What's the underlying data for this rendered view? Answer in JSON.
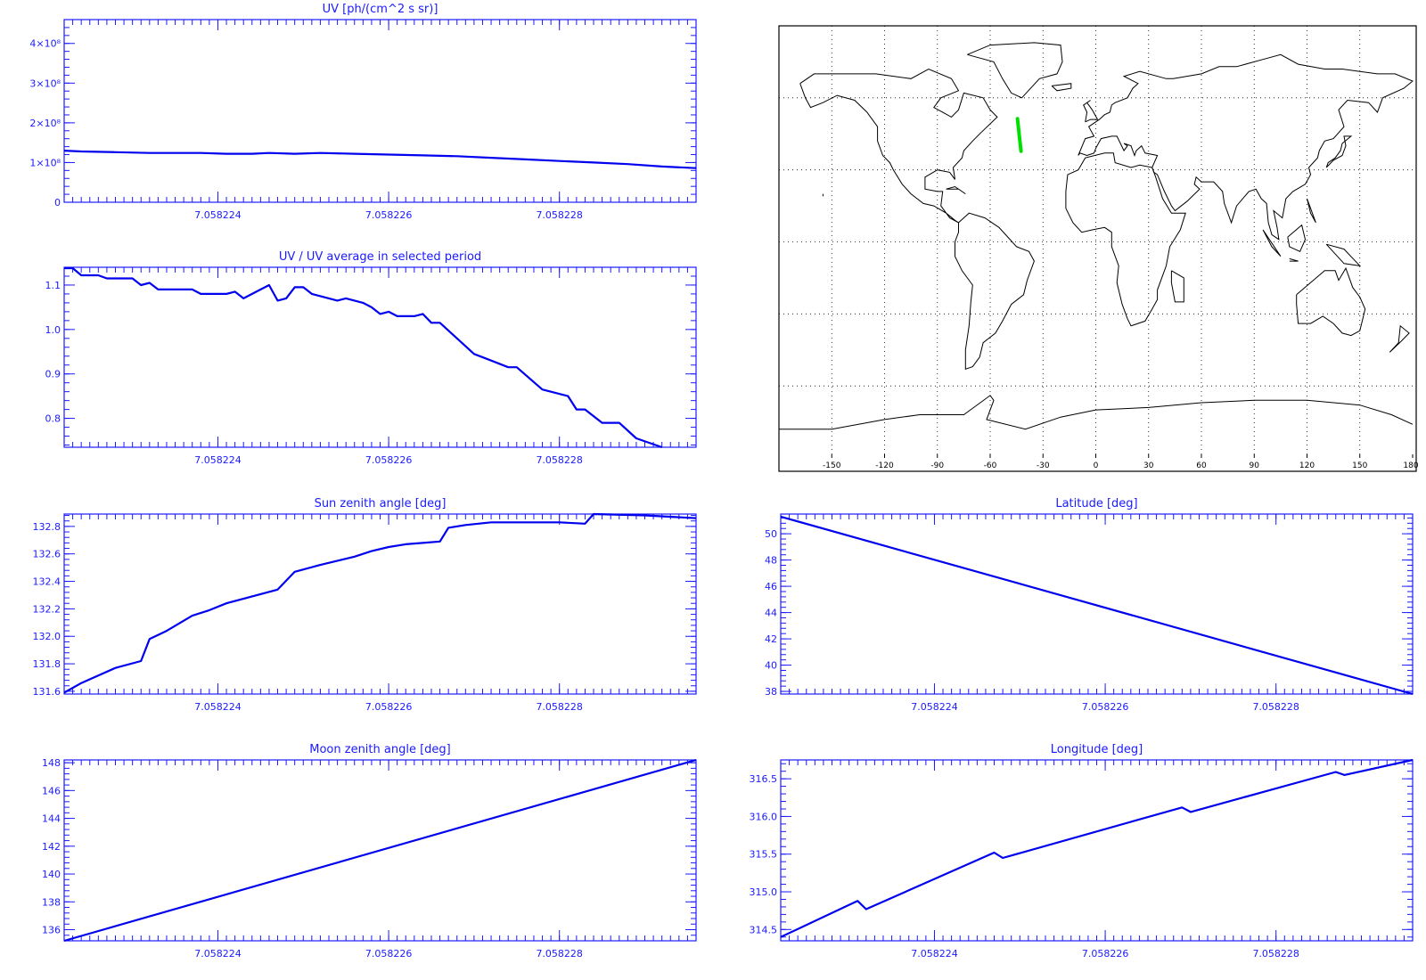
{
  "colors": {
    "axis": "#1a1aff",
    "line": "#0000ee",
    "track": "#00e000",
    "map": "#000000"
  },
  "chart_data": [
    {
      "type": "line",
      "title": "UV [ph/(cm^2 s sr)]",
      "xlabel": "",
      "ylabel": "",
      "xlim": [
        7.0582222,
        7.0582296
      ],
      "ylim": [
        0,
        4.6
      ],
      "x_ticks": [
        7.058224,
        7.058226,
        7.058228
      ],
      "x_tick_labels": [
        "7.058224",
        "7.058226",
        "7.058228"
      ],
      "y_ticks": [
        0,
        1,
        2,
        3,
        4
      ],
      "y_tick_labels": [
        "0",
        "1×10⁸",
        "2×10⁸",
        "3×10⁸",
        "4×10⁸"
      ],
      "series": [
        {
          "values": [
            [
              7.0582222,
              1.3
            ],
            [
              7.0582224,
              1.28
            ],
            [
              7.0582228,
              1.26
            ],
            [
              7.0582232,
              1.24
            ],
            [
              7.0582238,
              1.24
            ],
            [
              7.0582241,
              1.22
            ],
            [
              7.0582244,
              1.22
            ],
            [
              7.0582246,
              1.24
            ],
            [
              7.0582249,
              1.22
            ],
            [
              7.0582252,
              1.24
            ],
            [
              7.0582256,
              1.22
            ],
            [
              7.058226,
              1.2
            ],
            [
              7.0582264,
              1.18
            ],
            [
              7.0582268,
              1.16
            ],
            [
              7.0582272,
              1.12
            ],
            [
              7.0582276,
              1.08
            ],
            [
              7.058228,
              1.04
            ],
            [
              7.0582284,
              1.0
            ],
            [
              7.0582288,
              0.96
            ],
            [
              7.0582292,
              0.9
            ],
            [
              7.0582296,
              0.86
            ]
          ]
        }
      ]
    },
    {
      "type": "line",
      "title": "UV / UV average in selected period",
      "xlabel": "",
      "ylabel": "",
      "xlim": [
        7.0582222,
        7.0582296
      ],
      "ylim": [
        0.735,
        1.14
      ],
      "x_ticks": [
        7.058224,
        7.058226,
        7.058228
      ],
      "x_tick_labels": [
        "7.058224",
        "7.058226",
        "7.058228"
      ],
      "y_ticks": [
        0.8,
        0.9,
        1.0,
        1.1
      ],
      "y_tick_labels": [
        "0.8",
        "0.9",
        "1.0",
        "1.1"
      ],
      "series": [
        {
          "values": [
            [
              7.0582222,
              1.138
            ],
            [
              7.0582223,
              1.138
            ],
            [
              7.0582224,
              1.122
            ],
            [
              7.0582226,
              1.122
            ],
            [
              7.0582227,
              1.115
            ],
            [
              7.058223,
              1.115
            ],
            [
              7.0582231,
              1.1
            ],
            [
              7.0582232,
              1.105
            ],
            [
              7.0582233,
              1.09
            ],
            [
              7.0582237,
              1.09
            ],
            [
              7.0582238,
              1.08
            ],
            [
              7.0582241,
              1.08
            ],
            [
              7.0582242,
              1.085
            ],
            [
              7.0582243,
              1.07
            ],
            [
              7.0582246,
              1.1
            ],
            [
              7.0582247,
              1.065
            ],
            [
              7.0582248,
              1.07
            ],
            [
              7.0582249,
              1.095
            ],
            [
              7.058225,
              1.095
            ],
            [
              7.0582251,
              1.08
            ],
            [
              7.0582253,
              1.07
            ],
            [
              7.0582254,
              1.065
            ],
            [
              7.0582255,
              1.07
            ],
            [
              7.0582257,
              1.06
            ],
            [
              7.0582258,
              1.05
            ],
            [
              7.0582259,
              1.035
            ],
            [
              7.058226,
              1.04
            ],
            [
              7.0582261,
              1.03
            ],
            [
              7.0582263,
              1.03
            ],
            [
              7.0582264,
              1.035
            ],
            [
              7.0582265,
              1.015
            ],
            [
              7.0582266,
              1.015
            ],
            [
              7.058227,
              0.945
            ],
            [
              7.0582272,
              0.93
            ],
            [
              7.0582274,
              0.915
            ],
            [
              7.0582275,
              0.915
            ],
            [
              7.0582278,
              0.865
            ],
            [
              7.0582281,
              0.85
            ],
            [
              7.0582282,
              0.82
            ],
            [
              7.0582283,
              0.82
            ],
            [
              7.0582285,
              0.79
            ],
            [
              7.0582287,
              0.79
            ],
            [
              7.0582289,
              0.755
            ],
            [
              7.0582292,
              0.735
            ]
          ]
        }
      ]
    },
    {
      "type": "line",
      "title": "Sun zenith angle [deg]",
      "xlabel": "",
      "ylabel": "",
      "xlim": [
        7.0582222,
        7.0582296
      ],
      "ylim": [
        131.58,
        132.89
      ],
      "x_ticks": [
        7.058224,
        7.058226,
        7.058228
      ],
      "x_tick_labels": [
        "7.058224",
        "7.058226",
        "7.058228"
      ],
      "y_ticks": [
        131.6,
        131.8,
        132.0,
        132.2,
        132.4,
        132.6,
        132.8
      ],
      "y_tick_labels": [
        "131.6",
        "131.8",
        "132.0",
        "132.2",
        "132.4",
        "132.6",
        "132.8"
      ],
      "series": [
        {
          "values": [
            [
              7.0582222,
              131.59
            ],
            [
              7.0582224,
              131.66
            ],
            [
              7.0582228,
              131.77
            ],
            [
              7.0582231,
              131.82
            ],
            [
              7.0582232,
              131.98
            ],
            [
              7.0582234,
              132.04
            ],
            [
              7.0582237,
              132.15
            ],
            [
              7.0582239,
              132.19
            ],
            [
              7.0582241,
              132.24
            ],
            [
              7.0582247,
              132.34
            ],
            [
              7.0582249,
              132.47
            ],
            [
              7.0582252,
              132.52
            ],
            [
              7.0582256,
              132.58
            ],
            [
              7.0582258,
              132.62
            ],
            [
              7.058226,
              132.65
            ],
            [
              7.0582262,
              132.67
            ],
            [
              7.0582264,
              132.68
            ],
            [
              7.0582266,
              132.69
            ],
            [
              7.0582267,
              132.79
            ],
            [
              7.0582269,
              132.81
            ],
            [
              7.0582272,
              132.83
            ],
            [
              7.0582276,
              132.83
            ],
            [
              7.0582278,
              132.83
            ],
            [
              7.058228,
              132.83
            ],
            [
              7.0582283,
              132.82
            ],
            [
              7.0582284,
              132.89
            ],
            [
              7.058229,
              132.88
            ],
            [
              7.0582296,
              132.86
            ]
          ]
        }
      ]
    },
    {
      "type": "line",
      "title": "Latitude [deg]",
      "xlabel": "",
      "ylabel": "",
      "xlim": [
        7.0582222,
        7.0582296
      ],
      "ylim": [
        37.8,
        51.5
      ],
      "x_ticks": [
        7.058224,
        7.058226,
        7.058228
      ],
      "x_tick_labels": [
        "7.058224",
        "7.058226",
        "7.058228"
      ],
      "y_ticks": [
        38,
        40,
        42,
        44,
        46,
        48,
        50
      ],
      "y_tick_labels": [
        "38",
        "40",
        "42",
        "44",
        "46",
        "48",
        "50"
      ],
      "series": [
        {
          "values": [
            [
              7.0582222,
              51.3
            ],
            [
              7.0582296,
              37.8
            ]
          ]
        }
      ]
    },
    {
      "type": "line",
      "title": "Moon zenith angle [deg]",
      "xlabel": "",
      "ylabel": "",
      "xlim": [
        7.0582222,
        7.0582296
      ],
      "ylim": [
        135.2,
        148.2
      ],
      "x_ticks": [
        7.058224,
        7.058226,
        7.058228
      ],
      "x_tick_labels": [
        "7.058224",
        "7.058226",
        "7.058228"
      ],
      "y_ticks": [
        136,
        138,
        140,
        142,
        144,
        146,
        148
      ],
      "y_tick_labels": [
        "136",
        "138",
        "140",
        "142",
        "144",
        "146",
        "148"
      ],
      "series": [
        {
          "values": [
            [
              7.0582222,
              135.2
            ],
            [
              7.0582296,
              148.2
            ]
          ]
        }
      ]
    },
    {
      "type": "line",
      "title": "Longitude [deg]",
      "xlabel": "",
      "ylabel": "",
      "xlim": [
        7.0582222,
        7.0582296
      ],
      "ylim": [
        314.35,
        316.75
      ],
      "x_ticks": [
        7.058224,
        7.058226,
        7.058228
      ],
      "x_tick_labels": [
        "7.058224",
        "7.058226",
        "7.058228"
      ],
      "y_ticks": [
        314.5,
        315.0,
        315.5,
        316.0,
        316.5
      ],
      "y_tick_labels": [
        "314.5",
        "315.0",
        "315.5",
        "316.0",
        "316.5"
      ],
      "series": [
        {
          "values": [
            [
              7.0582222,
              314.4
            ],
            [
              7.0582231,
              314.88
            ],
            [
              7.0582232,
              314.77
            ],
            [
              7.0582247,
              315.52
            ],
            [
              7.0582248,
              315.45
            ],
            [
              7.0582269,
              316.12
            ],
            [
              7.058227,
              316.06
            ],
            [
              7.0582287,
              316.59
            ],
            [
              7.0582288,
              316.55
            ],
            [
              7.0582296,
              316.75
            ]
          ]
        }
      ]
    },
    {
      "type": "map",
      "title": "",
      "x_ticks": [
        -150,
        -120,
        -90,
        -60,
        -30,
        0,
        30,
        60,
        90,
        120,
        150,
        180
      ],
      "x_tick_labels": [
        "-150",
        "-120",
        "-90",
        "-60",
        "-30",
        "0",
        "30",
        "60",
        "90",
        "120",
        "150",
        "180"
      ],
      "xlim": [
        -180,
        180
      ],
      "ylim": [
        -90,
        90
      ],
      "track": [
        [
          -44.5,
          51.3
        ],
        [
          -42.5,
          37.8
        ]
      ]
    }
  ]
}
